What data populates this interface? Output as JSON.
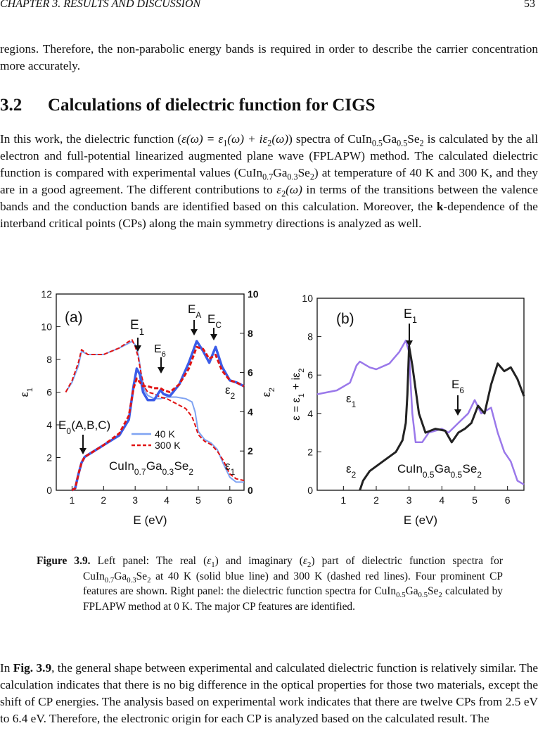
{
  "header": {
    "chapter": "CHAPTER 3.  RESULTS AND DISCUSSION",
    "page": "53"
  },
  "intro": [
    "regions. Therefore, the non-parabolic energy bands is required in order to describe the carrier concentration more accurately."
  ],
  "section": {
    "number": "3.2",
    "title": "Calculations of dielectric function for CIGS"
  },
  "body": [
    "In this work, the dielectric function (",
    {
      "i": "ε(ω) = ε"
    },
    {
      "sub": "1"
    },
    {
      "i": "(ω) + iε"
    },
    {
      "sub": "2"
    },
    {
      "i": "(ω)"
    },
    ") spectra of CuIn",
    {
      "sub": "0.5"
    },
    "Ga",
    {
      "sub": "0.5"
    },
    "Se",
    {
      "sub": "2"
    },
    " is calculated by the all electron and full-potential linearized augmented plane wave (FPLAPW) method.  The calculated dielectric function is compared with experimental values (CuIn",
    {
      "sub": "0.7"
    },
    "Ga",
    {
      "sub": "0.3"
    },
    "Se",
    {
      "sub": "2"
    },
    ") at temperature of 40 K and 300 K, and they are in a good agreement. The different contributions to ",
    {
      "i": "ε"
    },
    {
      "sub": "2"
    },
    {
      "i": "(ω)"
    },
    " in terms of the transitions between the valence bands and the conduction bands are identified based on this calculation. Moreover, the ",
    {
      "b": "k"
    },
    "-dependence of the interband critical points (CPs) along the main symmetry directions is analyzed as well."
  ],
  "figure": {
    "label": "Figure 3.9.",
    "caption": [
      " Left panel:  The real (",
      {
        "i": "ε"
      },
      {
        "sub": "1"
      },
      ") and imaginary (",
      {
        "i": "ε"
      },
      {
        "sub": "2"
      },
      ") part of dielectric function spectra for CuIn",
      {
        "sub": "0.7"
      },
      "Ga",
      {
        "sub": "0.3"
      },
      "Se",
      {
        "sub": "2"
      },
      " at 40 K (solid blue line) and 300 K (dashed red lines).  Four prominent CP features are shown.  Right panel:  the dielectric function spectra for CuIn",
      {
        "sub": "0.5"
      },
      "Ga",
      {
        "sub": "0.5"
      },
      "Se",
      {
        "sub": "2"
      },
      " calculated by FPLAPW method at 0 K. The major CP features are identified."
    ]
  },
  "closing": [
    "In ",
    {
      "b": "Fig. 3.9"
    },
    ", the general shape between experimental and calculated dielectric function is relatively similar.  The calculation indicates that there is no big difference in the optical properties for those two materials, except the shift of CP energies.  The analysis based on experimental work indicates that there are twelve CPs from 2.5 eV to 6.4 eV. Therefore, the electronic origin for each CP is analyzed based on the calculated result.  The"
  ],
  "chart_data": [
    {
      "type": "line",
      "xlabel": "E (eV)",
      "ylabel": [
        "ε",
        {
          "sub": "1"
        }
      ],
      "y2label": [
        "ε",
        {
          "sub": "2"
        }
      ],
      "xlim": [
        0.5,
        6.45
      ],
      "xticks": [
        1,
        2,
        3,
        4,
        5,
        6
      ],
      "ylim": [
        0,
        12
      ],
      "yticks": [
        0,
        2,
        4,
        6,
        8,
        10,
        12
      ],
      "y2lim": [
        0,
        10
      ],
      "y2ticks": [
        0,
        2,
        4,
        6,
        8,
        10
      ],
      "series": [
        {
          "name": "40 K",
          "color": "#7fa3f2",
          "dash": false,
          "width": 2,
          "x": [
            0.8,
            1.0,
            1.2,
            1.3,
            1.5,
            2.0,
            2.5,
            2.8,
            2.9,
            3.0,
            3.1,
            3.2,
            3.3,
            3.4,
            3.6,
            3.8,
            4.0,
            4.3,
            4.6,
            4.8,
            4.9,
            5.0,
            5.2,
            5.4,
            5.6,
            5.8,
            6.0,
            6.2,
            6.45
          ],
          "values": [
            6.0,
            6.6,
            7.6,
            8.5,
            8.3,
            8.3,
            8.7,
            9.0,
            9.1,
            8.9,
            8.3,
            7.0,
            6.1,
            5.8,
            5.6,
            5.6,
            5.7,
            5.7,
            5.6,
            5.4,
            4.8,
            3.6,
            3.1,
            2.9,
            2.5,
            1.6,
            0.8,
            0.5,
            0.5
          ]
        },
        {
          "name": "300 K",
          "color": "#e01414",
          "dash": true,
          "width": 2,
          "x": [
            0.8,
            1.0,
            1.2,
            1.3,
            1.5,
            2.0,
            2.5,
            2.8,
            2.9,
            3.0,
            3.1,
            3.2,
            3.3,
            3.4,
            3.6,
            3.8,
            4.0,
            4.3,
            4.6,
            4.8,
            4.9,
            5.0,
            5.2,
            5.4,
            5.6,
            5.8,
            6.0,
            6.2,
            6.45
          ],
          "values": [
            6.0,
            6.7,
            7.8,
            8.6,
            8.3,
            8.3,
            8.7,
            9.1,
            9.2,
            8.8,
            8.1,
            7.0,
            6.3,
            6.0,
            5.9,
            5.7,
            5.6,
            5.3,
            5.0,
            4.5,
            4.0,
            3.4,
            3.0,
            2.8,
            2.4,
            1.8,
            1.0,
            0.7,
            0.6
          ]
        },
        {
          "color": "#3b5ce8",
          "dash": false,
          "width": 3.5,
          "axis": "y2",
          "x": [
            1.0,
            1.1,
            1.2,
            1.3,
            1.4,
            1.6,
            2.0,
            2.5,
            2.8,
            2.95,
            3.05,
            3.15,
            3.25,
            3.4,
            3.6,
            3.8,
            3.9,
            4.1,
            4.4,
            4.7,
            4.95,
            5.15,
            5.35,
            5.55,
            5.75,
            6.0,
            6.2,
            6.45
          ],
          "values": [
            0.0,
            0.1,
            0.8,
            1.4,
            1.7,
            1.9,
            2.3,
            2.8,
            3.6,
            5.3,
            6.2,
            5.9,
            5.0,
            4.6,
            4.6,
            5.1,
            4.9,
            4.8,
            5.4,
            6.5,
            7.6,
            7.1,
            6.5,
            7.3,
            6.3,
            5.6,
            5.5,
            5.3
          ]
        },
        {
          "color": "#e01414",
          "dash": true,
          "width": 3,
          "axis": "y2",
          "x": [
            1.0,
            1.1,
            1.2,
            1.3,
            1.4,
            1.6,
            2.0,
            2.5,
            2.8,
            2.95,
            3.05,
            3.15,
            3.25,
            3.4,
            3.6,
            3.8,
            3.9,
            4.1,
            4.4,
            4.7,
            4.95,
            5.15,
            5.35,
            5.55,
            5.75,
            6.0,
            6.2,
            6.45
          ],
          "values": [
            0.0,
            0.1,
            0.8,
            1.4,
            1.7,
            1.9,
            2.3,
            2.9,
            3.8,
            5.2,
            5.7,
            5.5,
            5.3,
            5.3,
            5.2,
            5.2,
            5.1,
            5.0,
            5.4,
            6.2,
            7.3,
            7.2,
            6.7,
            6.9,
            6.1,
            5.6,
            5.5,
            5.3
          ]
        }
      ],
      "annotations": [
        [
          "(a)"
        ],
        [
          "E",
          {
            "sub": "1"
          }
        ],
        [
          "E",
          {
            "sub": "6"
          }
        ],
        [
          "E",
          {
            "sub": "A"
          }
        ],
        [
          "E",
          {
            "sub": "C"
          }
        ],
        [
          "E",
          {
            "sub": "0"
          },
          "(A,B,C)"
        ],
        [
          "ε",
          {
            "sub": "2"
          }
        ],
        [
          "ε",
          {
            "sub": "1"
          }
        ],
        [
          "CuIn",
          {
            "sub": "0.7"
          },
          "Ga",
          {
            "sub": "0.3"
          },
          "Se",
          {
            "sub": "2"
          }
        ]
      ]
    },
    {
      "type": "line",
      "xlabel": "E (eV)",
      "ylabel": [
        "ε = ε",
        {
          "sub": "1"
        },
        " + iε",
        {
          "sub": "2"
        }
      ],
      "xlim": [
        0.2,
        6.5
      ],
      "xticks": [
        1,
        2,
        3,
        4,
        5,
        6
      ],
      "ylim": [
        0,
        10
      ],
      "yticks": [
        0,
        2,
        4,
        6,
        8,
        10
      ],
      "series": [
        {
          "color": "#9a78ea",
          "dash": false,
          "width": 2.5,
          "x": [
            0.2,
            0.8,
            1.2,
            1.4,
            1.5,
            1.8,
            2.0,
            2.4,
            2.7,
            2.9,
            3.0,
            3.05,
            3.1,
            3.2,
            3.4,
            3.6,
            3.8,
            4.0,
            4.2,
            4.5,
            4.8,
            5.0,
            5.2,
            5.5,
            5.7,
            5.9,
            6.1,
            6.3,
            6.5
          ],
          "values": [
            5.0,
            5.2,
            5.6,
            6.5,
            6.7,
            6.4,
            6.3,
            6.6,
            7.2,
            7.8,
            7.2,
            5.5,
            4.0,
            2.5,
            2.5,
            3.0,
            3.1,
            3.2,
            3.0,
            3.5,
            4.0,
            4.7,
            4.0,
            4.3,
            3.0,
            2.0,
            1.5,
            0.5,
            0.3
          ]
        },
        {
          "color": "#222222",
          "dash": false,
          "width": 3,
          "x": [
            1.5,
            1.6,
            1.8,
            2.2,
            2.6,
            2.8,
            2.9,
            2.95,
            3.0,
            3.1,
            3.3,
            3.5,
            3.8,
            4.1,
            4.3,
            4.5,
            4.7,
            4.9,
            5.1,
            5.3,
            5.5,
            5.7,
            5.9,
            6.1,
            6.3,
            6.5
          ],
          "values": [
            0,
            0.5,
            1.0,
            1.5,
            2.0,
            2.6,
            3.5,
            5.0,
            7.5,
            6.5,
            4.0,
            3.0,
            3.2,
            3.1,
            2.5,
            3.0,
            3.2,
            3.5,
            4.4,
            4.0,
            5.5,
            6.6,
            6.2,
            6.4,
            5.8,
            4.9
          ]
        }
      ],
      "annotations": [
        [
          "(b)"
        ],
        [
          "E",
          {
            "sub": "1"
          }
        ],
        [
          "E",
          {
            "sub": "6"
          }
        ],
        [
          "ε",
          {
            "sub": "1"
          }
        ],
        [
          "ε",
          {
            "sub": "2"
          }
        ],
        [
          "CuIn",
          {
            "sub": "0.5"
          },
          "Ga",
          {
            "sub": "0.5"
          },
          "Se",
          {
            "sub": "2"
          }
        ]
      ]
    }
  ]
}
